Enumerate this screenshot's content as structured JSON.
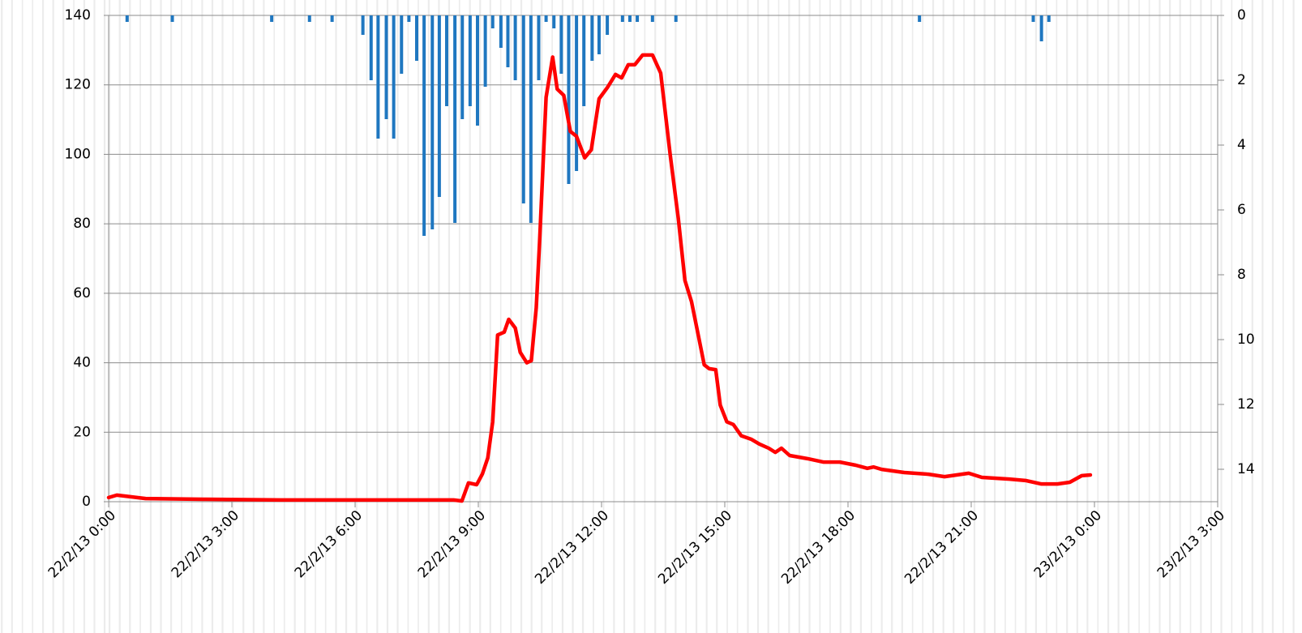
{
  "chart_data": {
    "type": "bar-line",
    "xlim": [
      0,
      27
    ],
    "xticks": [
      {
        "value": 0,
        "label": "22/2/13 0:00"
      },
      {
        "value": 3,
        "label": "22/2/13 3:00"
      },
      {
        "value": 6,
        "label": "22/2/13 6:00"
      },
      {
        "value": 9,
        "label": "22/2/13 9:00"
      },
      {
        "value": 12,
        "label": "22/2/13 12:00"
      },
      {
        "value": 15,
        "label": "22/2/13 15:00"
      },
      {
        "value": 18,
        "label": "22/2/13 18:00"
      },
      {
        "value": 21,
        "label": "22/2/13 21:00"
      },
      {
        "value": 24,
        "label": "23/2/13 0:00"
      },
      {
        "value": 27,
        "label": "23/2/13 3:00"
      }
    ],
    "ylim": [
      0,
      140
    ],
    "yticks": [
      0,
      20,
      40,
      60,
      80,
      100,
      120,
      140
    ],
    "y2lim": [
      0,
      15
    ],
    "y2ticks": [
      0,
      2,
      4,
      6,
      8,
      10,
      12,
      14
    ],
    "y2_inverted": true,
    "grid": true,
    "series": [
      {
        "type": "line",
        "color": "#ff0000",
        "x": [
          0,
          0.2,
          0.9,
          2.3,
          4.2,
          8.4,
          8.6,
          8.76,
          8.96,
          9.1,
          9.23,
          9.35,
          9.47,
          9.63,
          9.74,
          9.9,
          10.02,
          10.18,
          10.29,
          10.41,
          10.49,
          10.57,
          10.65,
          10.81,
          10.92,
          11.08,
          11.24,
          11.39,
          11.59,
          11.75,
          11.94,
          12.14,
          12.34,
          12.49,
          12.65,
          12.81,
          13.0,
          13.24,
          13.44,
          13.67,
          13.87,
          14.03,
          14.19,
          14.34,
          14.5,
          14.62,
          14.78,
          14.89,
          15.05,
          15.21,
          15.4,
          15.64,
          15.84,
          16.07,
          16.23,
          16.38,
          16.58,
          17.01,
          17.41,
          17.8,
          18.19,
          18.47,
          18.62,
          18.82,
          19.37,
          19.96,
          20.35,
          20.94,
          21.26,
          21.93,
          22.32,
          22.71,
          23.1,
          23.4,
          23.69,
          23.9
        ],
        "values": [
          1.2,
          1.9,
          0.9,
          0.7,
          0.5,
          0.5,
          0.2,
          5.4,
          4.9,
          8,
          12.6,
          23,
          48,
          48.8,
          52.5,
          50,
          43,
          40,
          40.6,
          55.8,
          74.4,
          95.4,
          116.4,
          128,
          118.8,
          117,
          106.6,
          105.2,
          99,
          101.3,
          116,
          119.2,
          123,
          122,
          125.8,
          125.8,
          128.6,
          128.6,
          123.4,
          100,
          81.4,
          63.7,
          57.6,
          48.8,
          39.4,
          38.3,
          38,
          27.8,
          23,
          22.2,
          19,
          18,
          16.6,
          15.4,
          14.2,
          15.4,
          13.3,
          12.4,
          11.4,
          11.4,
          10.5,
          9.6,
          10,
          9.3,
          8.4,
          7.9,
          7.2,
          8.2,
          7,
          6.5,
          6.1,
          5.1,
          5.1,
          5.6,
          7.5,
          7.7
        ]
      },
      {
        "type": "bar",
        "color": "#1f77c0",
        "axis": "y2",
        "x": [
          0.45,
          1.55,
          3.97,
          4.89,
          5.44,
          6.19,
          6.39,
          6.56,
          6.76,
          6.94,
          7.13,
          7.31,
          7.5,
          7.68,
          7.88,
          8.05,
          8.23,
          8.43,
          8.61,
          8.8,
          8.98,
          9.17,
          9.35,
          9.55,
          9.72,
          9.9,
          10.1,
          10.28,
          10.47,
          10.65,
          10.84,
          11.02,
          11.2,
          11.39,
          11.57,
          11.77,
          11.94,
          12.14,
          12.51,
          12.69,
          12.87,
          13.24,
          13.81,
          19.74,
          22.51,
          22.71,
          22.89
        ],
        "values": [
          0.2,
          0.2,
          0.2,
          0.2,
          0.2,
          0.6,
          2.0,
          3.8,
          3.2,
          3.8,
          1.8,
          0.2,
          1.4,
          6.8,
          6.6,
          5.6,
          2.8,
          6.4,
          3.2,
          2.8,
          3.4,
          2.2,
          0.4,
          1.0,
          1.6,
          2.0,
          5.8,
          6.4,
          2.0,
          0.2,
          0.4,
          1.8,
          5.2,
          4.8,
          2.8,
          1.4,
          1.2,
          0.6,
          0.2,
          0.2,
          0.2,
          0.2,
          0.2,
          0.2,
          0.2,
          0.8,
          0.2
        ]
      }
    ]
  }
}
